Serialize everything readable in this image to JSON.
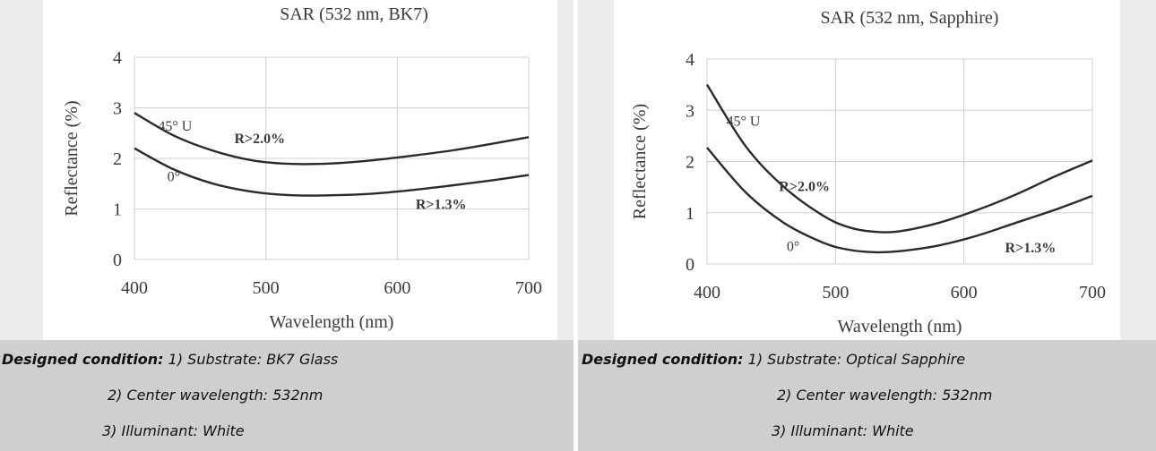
{
  "colors": {
    "side_band": "#ececec",
    "caption_bg": "#cfcfcf",
    "grid": "#cfcfcf",
    "curve": "#2a2a2a",
    "text": "#3a3a3a"
  },
  "chart_data": [
    {
      "type": "line",
      "title": "SAR   (532 nm, BK7)",
      "xlabel": "Wavelength (nm)",
      "ylabel": "Reflectance  (%)",
      "xlim": [
        400,
        700
      ],
      "ylim": [
        0,
        4
      ],
      "xticks": [
        "400",
        "500",
        "600",
        "700"
      ],
      "yticks": [
        "0",
        "1",
        "2",
        "3",
        "4"
      ],
      "grid": true,
      "series": [
        {
          "name": "45° U",
          "x": [
            400,
            430,
            460,
            490,
            520,
            550,
            580,
            610,
            640,
            670,
            700
          ],
          "y": [
            2.9,
            2.45,
            2.15,
            1.96,
            1.89,
            1.9,
            1.96,
            2.05,
            2.15,
            2.28,
            2.42
          ]
        },
        {
          "name": "0°",
          "x": [
            400,
            430,
            460,
            490,
            520,
            550,
            580,
            610,
            640,
            670,
            700
          ],
          "y": [
            2.2,
            1.78,
            1.5,
            1.34,
            1.27,
            1.27,
            1.3,
            1.37,
            1.46,
            1.56,
            1.67
          ]
        }
      ],
      "annotations": [
        {
          "text": "45° U",
          "x": 418,
          "y": 2.55
        },
        {
          "text": "R>2.0%",
          "x": 476,
          "y": 2.3
        },
        {
          "text": "0°",
          "x": 425,
          "y": 1.55
        },
        {
          "text": "R>1.3%",
          "x": 614,
          "y": 1.0
        }
      ]
    },
    {
      "type": "line",
      "title": "SAR  (532 nm, Sapphire)",
      "xlabel": "Wavelength (nm)",
      "ylabel": "Reflectance  (%)",
      "xlim": [
        400,
        700
      ],
      "ylim": [
        0,
        4
      ],
      "xticks": [
        "400",
        "500",
        "600",
        "700"
      ],
      "yticks": [
        "0",
        "1",
        "2",
        "3",
        "4"
      ],
      "grid": true,
      "series": [
        {
          "name": "45° U",
          "x": [
            400,
            430,
            460,
            490,
            510,
            530,
            550,
            580,
            610,
            640,
            670,
            700
          ],
          "y": [
            3.5,
            2.3,
            1.5,
            0.95,
            0.72,
            0.63,
            0.64,
            0.8,
            1.05,
            1.35,
            1.7,
            2.02
          ]
        },
        {
          "name": "0°",
          "x": [
            400,
            430,
            460,
            490,
            510,
            530,
            550,
            580,
            610,
            640,
            670,
            700
          ],
          "y": [
            2.27,
            1.4,
            0.8,
            0.42,
            0.28,
            0.23,
            0.25,
            0.36,
            0.55,
            0.8,
            1.05,
            1.33
          ]
        }
      ],
      "annotations": [
        {
          "text": "45° U",
          "x": 415,
          "y": 2.7
        },
        {
          "text": "R>2.0%",
          "x": 456,
          "y": 1.42
        },
        {
          "text": "0°",
          "x": 462,
          "y": 0.25
        },
        {
          "text": "R>1.3%",
          "x": 632,
          "y": 0.23
        }
      ]
    }
  ],
  "captions": [
    {
      "heading": "Designed condition:",
      "line1_rest": " 1) Substrate: BK7 Glass",
      "line2": "2) Center wavelength: 532nm",
      "line3": "3) Illuminant: White"
    },
    {
      "heading": "Designed condition:",
      "line1_rest": " 1) Substrate: Optical Sapphire",
      "line2": "2) Center wavelength: 532nm",
      "line3": "3) Illuminant: White"
    }
  ]
}
